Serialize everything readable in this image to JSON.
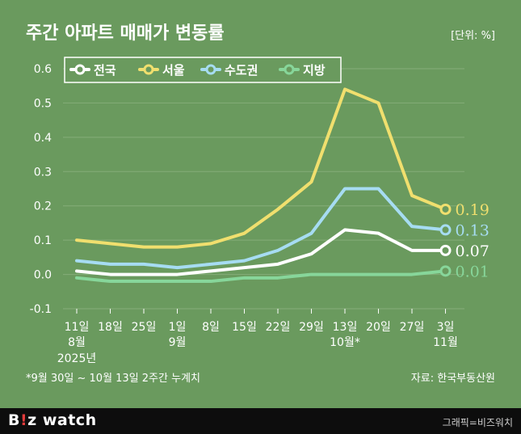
{
  "header": {
    "title": "주간 아파트 매매가 변동률",
    "unit": "[단위: %]"
  },
  "footnote": "*9월 30일 ~ 10월 13일 2주간 누계치",
  "source": "자료: 한국부동산원",
  "brand": {
    "b": "B",
    "excl": "!",
    "z": "z",
    "watch": "watch"
  },
  "credit": "그래픽=비즈워치",
  "colors": {
    "background": "#6a9a5e",
    "nationwide": "#ffffff",
    "seoul": "#f0df6e",
    "capital": "#a6dcf2",
    "regional": "#87d69a",
    "grid": "#85ad79",
    "axis_text": "#ffffff"
  },
  "chart_data": {
    "type": "line",
    "categories": [
      "11일",
      "18일",
      "25일",
      "1일",
      "8일",
      "15일",
      "22일",
      "29일",
      "13일",
      "20일",
      "27일",
      "3일"
    ],
    "month_labels": [
      {
        "index": 0,
        "label": "8월"
      },
      {
        "index": 3,
        "label": "9월"
      },
      {
        "index": 8,
        "label": "10월*"
      },
      {
        "index": 11,
        "label": "11월"
      }
    ],
    "year_label": {
      "index": 0,
      "label": "2025년"
    },
    "ylim": [
      -0.1,
      0.6
    ],
    "yticks": [
      "-0.1",
      "0.0",
      "0.1",
      "0.2",
      "0.3",
      "0.4",
      "0.5",
      "0.6"
    ],
    "ytick_values": [
      -0.1,
      0.0,
      0.1,
      0.2,
      0.3,
      0.4,
      0.5,
      0.6
    ],
    "grid": true,
    "legend_position": "top-left",
    "series": [
      {
        "name": "전국",
        "color_key": "nationwide",
        "values": [
          0.01,
          0.0,
          0.0,
          0.0,
          0.01,
          0.02,
          0.03,
          0.06,
          0.13,
          0.12,
          0.07,
          0.07
        ],
        "end_label": "0.07"
      },
      {
        "name": "서울",
        "color_key": "seoul",
        "values": [
          0.1,
          0.09,
          0.08,
          0.08,
          0.09,
          0.12,
          0.19,
          0.27,
          0.54,
          0.5,
          0.23,
          0.19
        ],
        "end_label": "0.19"
      },
      {
        "name": "수도권",
        "color_key": "capital",
        "values": [
          0.04,
          0.03,
          0.03,
          0.02,
          0.03,
          0.04,
          0.07,
          0.12,
          0.25,
          0.25,
          0.14,
          0.13
        ],
        "end_label": "0.13"
      },
      {
        "name": "지방",
        "color_key": "regional",
        "values": [
          -0.01,
          -0.02,
          -0.02,
          -0.02,
          -0.02,
          -0.01,
          -0.01,
          0.0,
          0.0,
          0.0,
          0.0,
          0.01
        ],
        "end_label": "0.01"
      }
    ]
  }
}
